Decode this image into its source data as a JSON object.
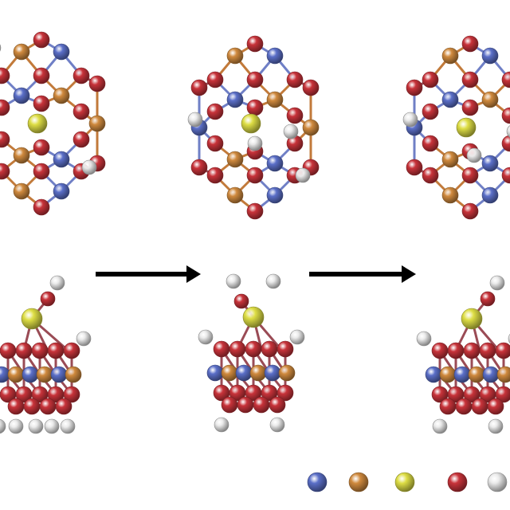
{
  "colors": {
    "background": "#ffffff",
    "arrow": "#000000",
    "bond": "#9a4b55",
    "bond_blue": "#6f7fc6",
    "bond_orange": "#c27a3a"
  },
  "atom_types": [
    {
      "key": "blue",
      "color": "#5b6fc8",
      "name": "blue-atom"
    },
    {
      "key": "orange",
      "color": "#d08a3e",
      "name": "orange-atom"
    },
    {
      "key": "yellow",
      "color": "#dede45",
      "name": "yellow-atom"
    },
    {
      "key": "red",
      "color": "#c8333a",
      "name": "red-atom"
    },
    {
      "key": "white",
      "color": "#eaeaea",
      "name": "white-atom"
    }
  ],
  "panels": {
    "top_views": 3,
    "side_views": 3
  },
  "reaction_arrows": 2,
  "legend_items": [
    "blue",
    "orange",
    "yellow",
    "red",
    "white"
  ]
}
